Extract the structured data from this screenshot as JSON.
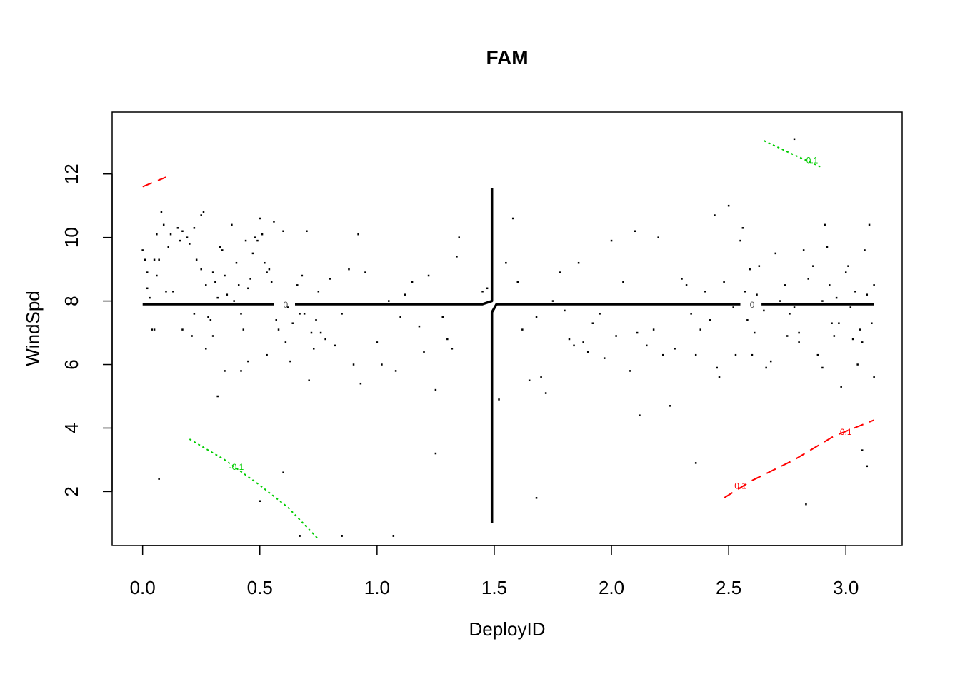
{
  "chart_data": {
    "type": "scatter",
    "title": "FAM",
    "xlabel": "DeployID",
    "ylabel": "WindSpd",
    "xlim": [
      -0.13,
      3.24
    ],
    "ylim": [
      0.3,
      13.95
    ],
    "x_ticks": [
      "0.0",
      "0.5",
      "1.0",
      "1.5",
      "2.0",
      "2.5",
      "3.0"
    ],
    "x_tick_values": [
      0,
      0.5,
      1,
      1.5,
      2,
      2.5,
      3
    ],
    "y_ticks": [
      "2",
      "4",
      "6",
      "8",
      "10",
      "12"
    ],
    "y_tick_values": [
      2,
      4,
      6,
      8,
      10,
      12
    ],
    "grid": false,
    "legend": "none",
    "colors": {
      "points": "#000000",
      "zero_contour": "#000000",
      "positive_contour": "#ff0000",
      "negative_contour": "#00cd00"
    },
    "points": [
      [
        0.0,
        9.6
      ],
      [
        0.01,
        9.3
      ],
      [
        0.02,
        8.9
      ],
      [
        0.03,
        8.1
      ],
      [
        0.02,
        8.4
      ],
      [
        0.05,
        9.3
      ],
      [
        0.06,
        8.8
      ],
      [
        0.04,
        7.1
      ],
      [
        0.05,
        7.1
      ],
      [
        0.07,
        9.3
      ],
      [
        0.06,
        10.1
      ],
      [
        0.08,
        10.8
      ],
      [
        0.09,
        10.4
      ],
      [
        0.1,
        8.3
      ],
      [
        0.11,
        9.7
      ],
      [
        0.12,
        10.1
      ],
      [
        0.13,
        8.3
      ],
      [
        0.15,
        10.3
      ],
      [
        0.16,
        9.9
      ],
      [
        0.17,
        10.2
      ],
      [
        0.19,
        10.0
      ],
      [
        0.2,
        9.8
      ],
      [
        0.22,
        10.3
      ],
      [
        0.23,
        9.3
      ],
      [
        0.25,
        9.0
      ],
      [
        0.25,
        10.7
      ],
      [
        0.26,
        10.8
      ],
      [
        0.27,
        8.5
      ],
      [
        0.28,
        7.5
      ],
      [
        0.29,
        7.4
      ],
      [
        0.3,
        8.9
      ],
      [
        0.31,
        8.6
      ],
      [
        0.32,
        8.1
      ],
      [
        0.33,
        9.7
      ],
      [
        0.34,
        9.6
      ],
      [
        0.35,
        8.8
      ],
      [
        0.36,
        8.2
      ],
      [
        0.38,
        10.4
      ],
      [
        0.39,
        8.0
      ],
      [
        0.4,
        9.2
      ],
      [
        0.41,
        8.5
      ],
      [
        0.42,
        7.6
      ],
      [
        0.43,
        7.1
      ],
      [
        0.44,
        9.9
      ],
      [
        0.45,
        8.4
      ],
      [
        0.46,
        8.7
      ],
      [
        0.47,
        9.5
      ],
      [
        0.48,
        10.0
      ],
      [
        0.49,
        9.9
      ],
      [
        0.5,
        10.6
      ],
      [
        0.51,
        10.1
      ],
      [
        0.52,
        9.2
      ],
      [
        0.53,
        8.9
      ],
      [
        0.54,
        9.0
      ],
      [
        0.55,
        8.6
      ],
      [
        0.56,
        10.5
      ],
      [
        0.57,
        7.4
      ],
      [
        0.58,
        7.1
      ],
      [
        0.6,
        10.2
      ],
      [
        0.61,
        6.7
      ],
      [
        0.62,
        7.8
      ],
      [
        0.63,
        6.1
      ],
      [
        0.64,
        7.3
      ],
      [
        0.66,
        8.5
      ],
      [
        0.67,
        7.6
      ],
      [
        0.68,
        8.8
      ],
      [
        0.69,
        7.6
      ],
      [
        0.7,
        10.2
      ],
      [
        0.71,
        5.5
      ],
      [
        0.72,
        7.0
      ],
      [
        0.73,
        6.5
      ],
      [
        0.74,
        7.4
      ],
      [
        0.75,
        8.3
      ],
      [
        0.76,
        7.0
      ],
      [
        0.78,
        6.8
      ],
      [
        0.8,
        8.7
      ],
      [
        0.82,
        6.6
      ],
      [
        0.85,
        7.6
      ],
      [
        0.88,
        9.0
      ],
      [
        0.9,
        6.0
      ],
      [
        0.92,
        10.1
      ],
      [
        0.93,
        5.4
      ],
      [
        0.95,
        8.9
      ],
      [
        0.97,
        7.9
      ],
      [
        1.0,
        6.7
      ],
      [
        1.02,
        6.0
      ],
      [
        1.05,
        8.0
      ],
      [
        1.08,
        5.8
      ],
      [
        1.1,
        7.5
      ],
      [
        1.12,
        8.2
      ],
      [
        1.15,
        8.6
      ],
      [
        1.18,
        7.2
      ],
      [
        1.2,
        6.4
      ],
      [
        1.22,
        8.8
      ],
      [
        1.25,
        5.2
      ],
      [
        1.28,
        7.5
      ],
      [
        1.3,
        6.8
      ],
      [
        1.32,
        6.5
      ],
      [
        1.34,
        9.4
      ],
      [
        1.35,
        10.0
      ],
      [
        1.4,
        7.9
      ],
      [
        1.45,
        8.3
      ],
      [
        0.32,
        5.0
      ],
      [
        0.35,
        5.8
      ],
      [
        0.42,
        5.8
      ],
      [
        0.45,
        6.1
      ],
      [
        0.5,
        7.9
      ],
      [
        0.53,
        6.3
      ],
      [
        0.3,
        6.9
      ],
      [
        0.27,
        6.5
      ],
      [
        0.22,
        7.6
      ],
      [
        0.17,
        7.1
      ],
      [
        0.21,
        6.9
      ],
      [
        1.52,
        4.9
      ],
      [
        1.55,
        9.2
      ],
      [
        1.58,
        10.6
      ],
      [
        1.6,
        8.6
      ],
      [
        1.62,
        7.1
      ],
      [
        1.65,
        5.5
      ],
      [
        1.68,
        7.5
      ],
      [
        1.7,
        5.6
      ],
      [
        1.72,
        5.1
      ],
      [
        1.75,
        8.0
      ],
      [
        1.78,
        8.9
      ],
      [
        1.8,
        7.7
      ],
      [
        1.82,
        6.8
      ],
      [
        1.84,
        6.6
      ],
      [
        1.86,
        9.2
      ],
      [
        1.88,
        6.7
      ],
      [
        1.9,
        6.4
      ],
      [
        1.92,
        7.3
      ],
      [
        1.95,
        7.6
      ],
      [
        1.97,
        6.2
      ],
      [
        2.0,
        9.9
      ],
      [
        2.02,
        6.9
      ],
      [
        2.05,
        8.6
      ],
      [
        2.08,
        5.8
      ],
      [
        2.1,
        10.2
      ],
      [
        2.11,
        7.0
      ],
      [
        2.12,
        4.4
      ],
      [
        2.15,
        6.6
      ],
      [
        2.18,
        7.1
      ],
      [
        2.2,
        10.0
      ],
      [
        2.22,
        6.3
      ],
      [
        2.25,
        4.7
      ],
      [
        2.27,
        6.5
      ],
      [
        2.3,
        8.7
      ],
      [
        2.32,
        8.5
      ],
      [
        2.34,
        7.6
      ],
      [
        2.36,
        6.3
      ],
      [
        2.38,
        7.1
      ],
      [
        2.4,
        8.3
      ],
      [
        2.42,
        7.4
      ],
      [
        2.44,
        10.7
      ],
      [
        2.45,
        5.9
      ],
      [
        2.46,
        5.6
      ],
      [
        2.48,
        8.6
      ],
      [
        2.5,
        11.0
      ],
      [
        2.52,
        7.8
      ],
      [
        2.53,
        6.3
      ],
      [
        2.55,
        9.9
      ],
      [
        2.56,
        10.3
      ],
      [
        2.57,
        8.3
      ],
      [
        2.58,
        7.4
      ],
      [
        2.59,
        9.0
      ],
      [
        2.6,
        6.3
      ],
      [
        2.61,
        7.0
      ],
      [
        2.62,
        8.2
      ],
      [
        2.63,
        9.1
      ],
      [
        2.65,
        7.7
      ],
      [
        2.66,
        5.9
      ],
      [
        2.68,
        6.1
      ],
      [
        2.7,
        9.5
      ],
      [
        2.72,
        8.0
      ],
      [
        2.74,
        8.5
      ],
      [
        2.75,
        6.9
      ],
      [
        2.76,
        7.6
      ],
      [
        2.78,
        7.8
      ],
      [
        2.8,
        6.7
      ],
      [
        2.82,
        9.6
      ],
      [
        2.84,
        8.7
      ],
      [
        2.85,
        7.9
      ],
      [
        2.86,
        9.1
      ],
      [
        2.88,
        6.3
      ],
      [
        2.9,
        5.9
      ],
      [
        2.91,
        10.4
      ],
      [
        2.92,
        9.7
      ],
      [
        2.93,
        8.5
      ],
      [
        2.94,
        7.3
      ],
      [
        2.95,
        6.9
      ],
      [
        2.96,
        8.1
      ],
      [
        2.97,
        7.3
      ],
      [
        2.98,
        5.3
      ],
      [
        3.0,
        8.9
      ],
      [
        3.01,
        9.1
      ],
      [
        3.02,
        7.8
      ],
      [
        3.03,
        6.8
      ],
      [
        3.04,
        8.3
      ],
      [
        3.05,
        6.0
      ],
      [
        3.06,
        7.1
      ],
      [
        3.07,
        6.7
      ],
      [
        3.08,
        9.6
      ],
      [
        3.09,
        8.2
      ],
      [
        3.1,
        10.4
      ],
      [
        3.11,
        7.3
      ],
      [
        3.12,
        5.6
      ],
      [
        3.12,
        8.5
      ],
      [
        2.9,
        8.0
      ],
      [
        2.8,
        7.0
      ],
      [
        0.07,
        2.4
      ],
      [
        0.6,
        2.6
      ],
      [
        0.5,
        1.7
      ],
      [
        0.67,
        0.6
      ],
      [
        0.85,
        0.6
      ],
      [
        1.07,
        0.6
      ],
      [
        1.25,
        3.2
      ],
      [
        1.68,
        1.8
      ],
      [
        2.36,
        2.9
      ],
      [
        2.83,
        1.6
      ],
      [
        3.07,
        3.3
      ],
      [
        3.09,
        2.8
      ],
      [
        2.78,
        13.1
      ],
      [
        1.42,
        7.9
      ],
      [
        1.47,
        8.4
      ]
    ],
    "contours": [
      {
        "level": "0",
        "color": "#000000",
        "style": "solid",
        "segments": [
          [
            [
              0.0,
              7.9
            ],
            [
              0.56,
              7.9
            ]
          ],
          [
            [
              0.65,
              7.9
            ],
            [
              1.45,
              7.9
            ],
            [
              1.49,
              8.0
            ],
            [
              1.49,
              11.55
            ]
          ],
          [
            [
              1.49,
              1.0
            ],
            [
              1.49,
              7.65
            ],
            [
              1.51,
              7.9
            ],
            [
              2.55,
              7.9
            ]
          ],
          [
            [
              2.64,
              7.9
            ],
            [
              3.12,
              7.9
            ]
          ]
        ],
        "labels": [
          [
            0.61,
            7.9
          ],
          [
            2.6,
            7.9
          ]
        ]
      },
      {
        "level": "0.1",
        "color": "#ff0000",
        "style": "dashed",
        "segments": [
          [
            [
              0.0,
              11.6
            ],
            [
              0.1,
              11.9
            ]
          ],
          [
            [
              2.48,
              1.8
            ],
            [
              2.6,
              2.35
            ],
            [
              2.78,
              3.0
            ],
            [
              2.95,
              3.75
            ],
            [
              3.12,
              4.25
            ]
          ]
        ],
        "labels": [
          [
            2.55,
            2.2
          ],
          [
            3.0,
            3.9
          ]
        ]
      },
      {
        "level": "-0.1",
        "color": "#00cd00",
        "style": "dotted",
        "segments": [
          [
            [
              0.2,
              3.65
            ],
            [
              0.35,
              3.0
            ],
            [
              0.5,
              2.2
            ],
            [
              0.62,
              1.5
            ],
            [
              0.75,
              0.5
            ]
          ],
          [
            [
              2.65,
              13.05
            ],
            [
              2.75,
              12.7
            ],
            [
              2.9,
              12.2
            ]
          ]
        ],
        "labels": [
          [
            0.4,
            2.8
          ],
          [
            2.85,
            12.45
          ]
        ]
      }
    ]
  }
}
